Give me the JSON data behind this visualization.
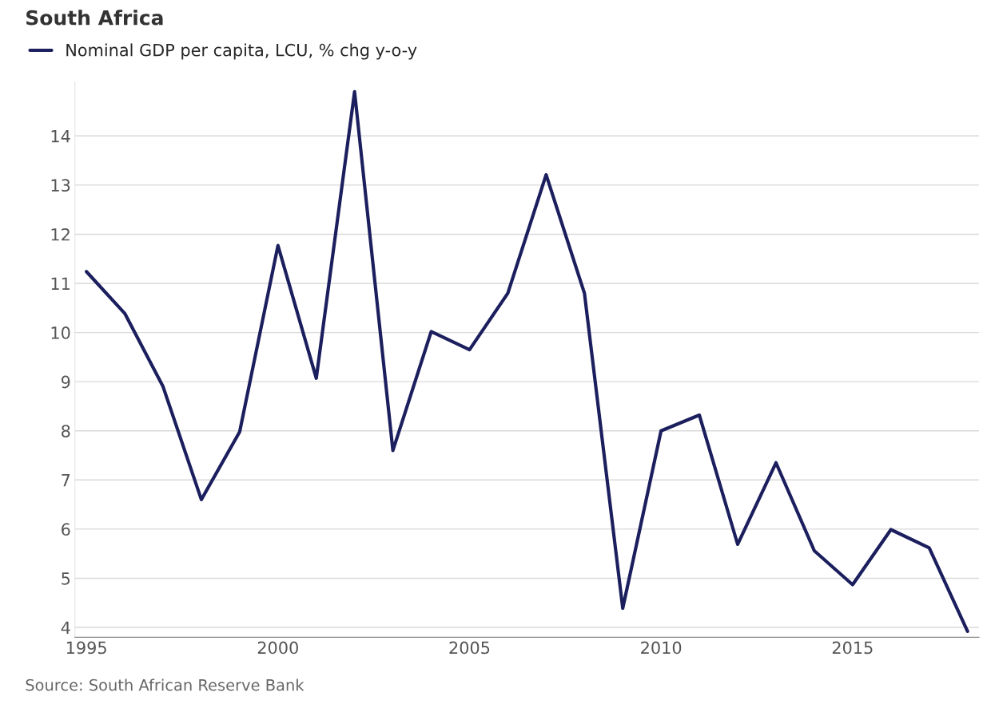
{
  "chart_data": {
    "type": "line",
    "title": "South Africa",
    "x": [
      1995,
      1996,
      1997,
      1998,
      1999,
      2000,
      2001,
      2002,
      2003,
      2004,
      2005,
      2006,
      2007,
      2008,
      2009,
      2010,
      2011,
      2012,
      2013,
      2014,
      2015,
      2016,
      2017,
      2018
    ],
    "series": [
      {
        "name": "Nominal GDP per capita, LCU, % chg y-o-y",
        "color": "#1c1f5e",
        "values": [
          11.24,
          10.39,
          8.9,
          6.6,
          7.98,
          11.77,
          9.07,
          14.9,
          7.6,
          10.02,
          9.65,
          10.8,
          13.21,
          10.8,
          4.39,
          8.0,
          8.32,
          5.69,
          7.35,
          5.56,
          4.87,
          5.99,
          5.62,
          3.92
        ]
      }
    ],
    "xlim": [
      1994.7,
      2018.3
    ],
    "xticks": [
      1995,
      2000,
      2005,
      2010,
      2015
    ],
    "ylim": [
      3.8,
      15.1
    ],
    "yticks": [
      4,
      5,
      6,
      7,
      8,
      9,
      10,
      11,
      12,
      13,
      14
    ],
    "grid": "y",
    "legend": "top left",
    "marker": "none",
    "line_style": "solid",
    "annotations": [
      "Source: South African Reserve Bank"
    ]
  }
}
